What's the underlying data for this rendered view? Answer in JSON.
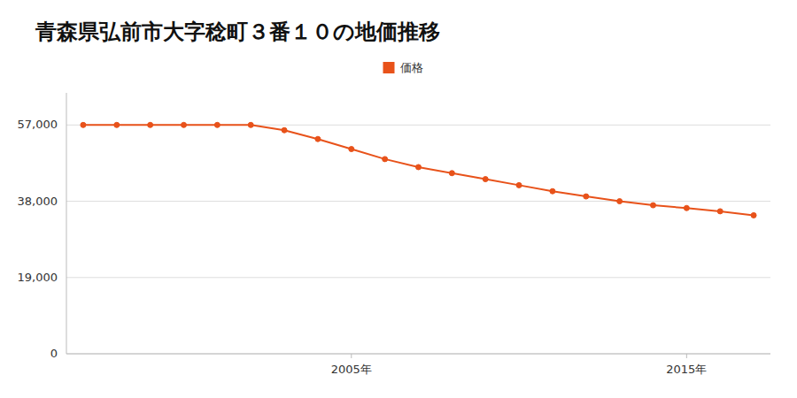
{
  "chart_data": {
    "type": "line",
    "title": "青森県弘前市大字稔町３番１０の地価推移",
    "x": [
      1997,
      1998,
      1999,
      2000,
      2001,
      2002,
      2003,
      2004,
      2005,
      2006,
      2007,
      2008,
      2009,
      2010,
      2011,
      2012,
      2013,
      2014,
      2015,
      2016,
      2017
    ],
    "series": [
      {
        "name": "価格",
        "color": "#e8521a",
        "marker": "circle",
        "values": [
          57000,
          57000,
          57000,
          57000,
          57000,
          57000,
          55700,
          53500,
          51000,
          48500,
          46500,
          45000,
          43500,
          42000,
          40500,
          39200,
          38000,
          37000,
          36300,
          35500,
          34500
        ]
      }
    ],
    "xlim": [
      1996.5,
      2017.5
    ],
    "xticks": [
      {
        "value": 2005,
        "label": "2005年"
      },
      {
        "value": 2015,
        "label": "2015年"
      }
    ],
    "ylim": [
      0,
      65000
    ],
    "yticks": [
      0,
      {
        "value": 19000,
        "label": "19,000"
      },
      {
        "value": 38000,
        "label": "38,000"
      },
      {
        "value": 57000,
        "label": "57,000"
      }
    ],
    "grid": true,
    "legend": "top"
  }
}
